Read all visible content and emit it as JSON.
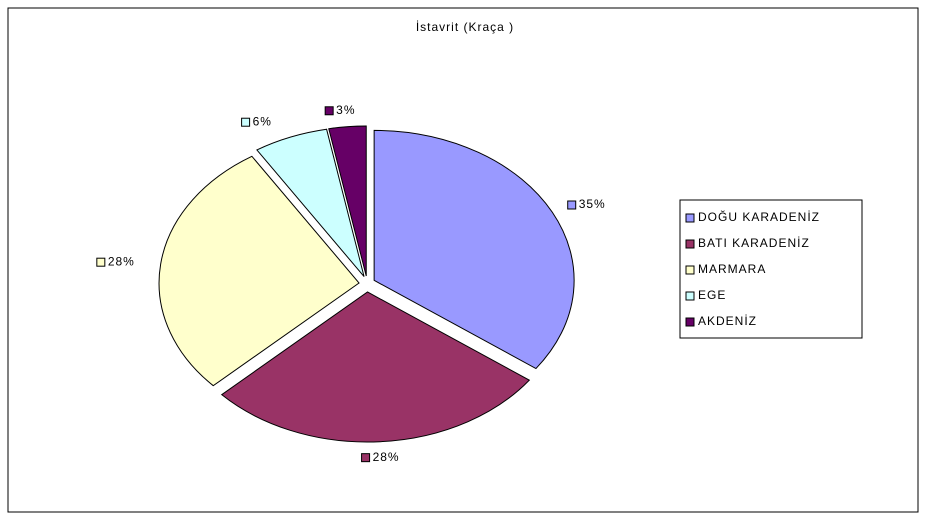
{
  "chart_data": {
    "type": "pie",
    "title": "İstavrit (Kraça )",
    "categories": [
      "DOĞU KARADENİZ",
      "BATI KARADENİZ",
      "MARMARA",
      "EGE",
      "AKDENİZ"
    ],
    "values": [
      35,
      28,
      28,
      6,
      3
    ],
    "value_labels": [
      "35%",
      "28%",
      "28%",
      "6%",
      "3%"
    ],
    "colors": [
      "#9999FF",
      "#993366",
      "#FFFFCC",
      "#CCFFFF",
      "#660066"
    ],
    "legend": "right"
  }
}
